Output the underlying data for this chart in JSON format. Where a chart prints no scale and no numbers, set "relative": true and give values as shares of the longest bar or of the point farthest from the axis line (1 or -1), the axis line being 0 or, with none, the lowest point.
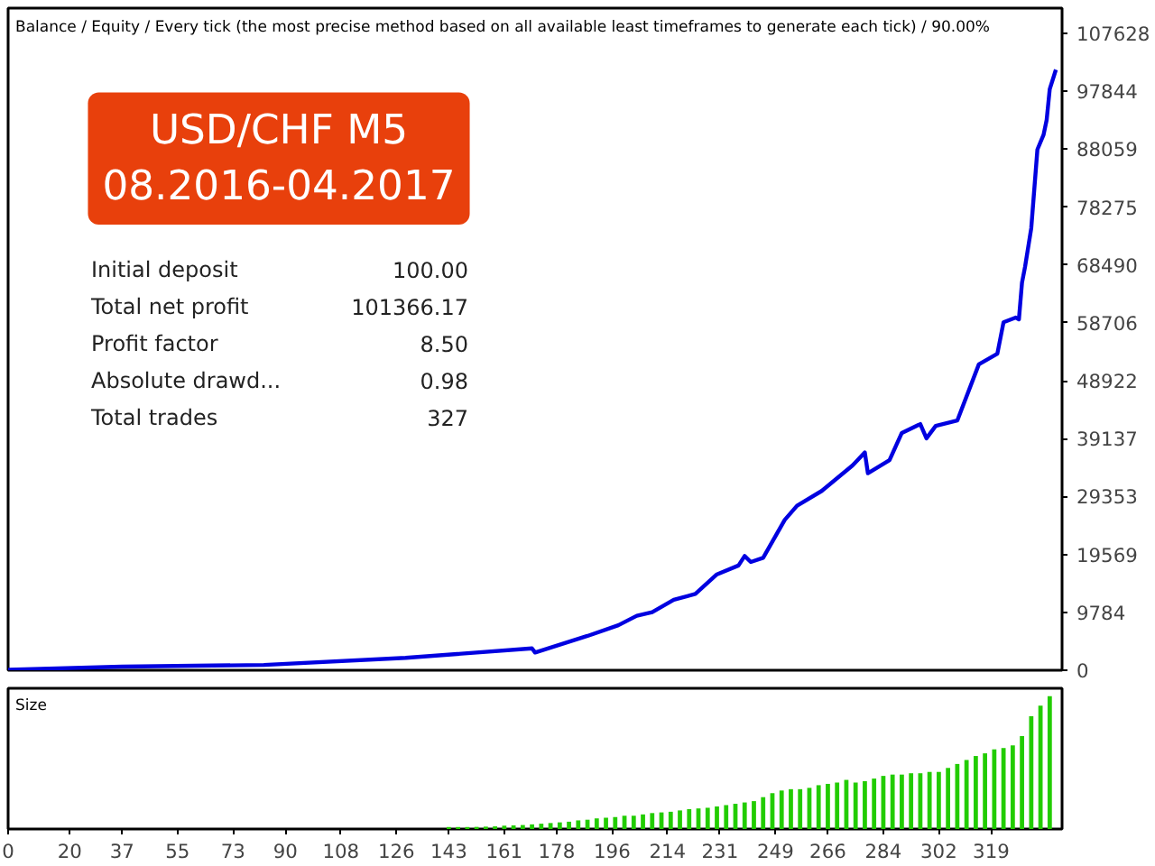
{
  "chart_data": [
    {
      "type": "line",
      "title": "Balance / Equity / Every tick (the most precise method based on all available least timeframes to generate each tick) / 90.00%",
      "annotations": [
        "USD/CHF M5",
        "08.2016-04.2017",
        "Initial deposit",
        "100.00",
        "Total net profit",
        "101366.17",
        "Profit factor",
        "8.50",
        "Absolute drawd...",
        "0.98",
        "Total trades",
        "327"
      ],
      "series": [
        {
          "color": "#0000e0",
          "x": [
            0,
            37,
            83,
            129,
            170,
            171,
            188,
            198,
            204,
            209,
            216,
            223,
            230,
            237,
            239,
            241,
            245,
            252,
            256,
            264,
            274,
            278,
            279,
            286,
            290,
            296,
            298,
            301,
            308,
            315,
            321,
            323,
            327,
            328,
            329,
            330,
            332,
            334,
            336,
            337,
            338,
            340
          ],
          "values": [
            100,
            600,
            900,
            2100,
            3700,
            3000,
            5800,
            7600,
            9200,
            9800,
            11900,
            12900,
            16200,
            17700,
            19300,
            18300,
            19000,
            25400,
            27800,
            30300,
            34600,
            36800,
            33300,
            35500,
            40100,
            41600,
            39200,
            41300,
            42200,
            51700,
            53500,
            58800,
            59600,
            59300,
            65500,
            68200,
            74700,
            88000,
            90500,
            93000,
            98200,
            101500
          ]
        }
      ],
      "xlim": [
        0,
        342
      ],
      "ylim": [
        0,
        111900
      ],
      "yticks": [
        0,
        9784,
        19569,
        29353,
        39137,
        48922,
        58706,
        68490,
        78275,
        88059,
        97844,
        107628
      ],
      "tick_labels": "y"
    },
    {
      "type": "bar",
      "title": "Size",
      "relative": true,
      "color": "#22cc00",
      "x": [
        143,
        146,
        149,
        152,
        155,
        158,
        161,
        164,
        167,
        170,
        173,
        176,
        179,
        182,
        185,
        188,
        191,
        194,
        197,
        200,
        203,
        206,
        209,
        212,
        215,
        218,
        221,
        224,
        227,
        230,
        233,
        236,
        239,
        242,
        245,
        248,
        251,
        254,
        257,
        260,
        263,
        266,
        269,
        272,
        275,
        278,
        281,
        284,
        287,
        290,
        293,
        296,
        299,
        302,
        305,
        308,
        311,
        314,
        317,
        320,
        323,
        326,
        329,
        332,
        335,
        338
      ],
      "values": [
        0.015,
        0.015,
        0.015,
        0.016,
        0.018,
        0.02,
        0.025,
        0.027,
        0.03,
        0.035,
        0.04,
        0.045,
        0.05,
        0.055,
        0.065,
        0.07,
        0.08,
        0.085,
        0.09,
        0.1,
        0.1,
        0.11,
        0.12,
        0.125,
        0.13,
        0.14,
        0.15,
        0.155,
        0.16,
        0.17,
        0.18,
        0.19,
        0.2,
        0.21,
        0.24,
        0.27,
        0.29,
        0.3,
        0.3,
        0.31,
        0.33,
        0.34,
        0.35,
        0.37,
        0.35,
        0.36,
        0.38,
        0.4,
        0.41,
        0.41,
        0.42,
        0.42,
        0.43,
        0.43,
        0.46,
        0.49,
        0.52,
        0.55,
        0.57,
        0.6,
        0.61,
        0.63,
        0.7,
        0.85,
        0.93,
        1.0
      ],
      "xlim": [
        0,
        342
      ],
      "xticks": [
        0,
        20,
        37,
        55,
        73,
        90,
        108,
        126,
        143,
        161,
        178,
        196,
        214,
        231,
        249,
        266,
        284,
        302,
        319
      ],
      "tick_labels": "x"
    }
  ]
}
